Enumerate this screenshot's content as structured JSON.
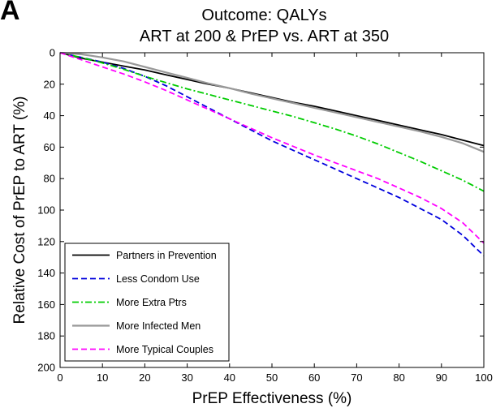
{
  "panel_label": "A",
  "chart_data": {
    "type": "line",
    "title": "Outcome: QALYs",
    "subtitle": "ART at 200 & PrEP vs. ART at 350",
    "xlabel": "PrEP Effectiveness (%)",
    "ylabel": "Relative Cost of PrEP to ART (%)",
    "xlim": [
      0,
      100
    ],
    "ylim": [
      0,
      200
    ],
    "y_reversed": true,
    "grid": false,
    "legend_position": "bottom-left",
    "x_ticks": [
      0,
      10,
      20,
      30,
      40,
      50,
      60,
      70,
      80,
      90,
      100
    ],
    "y_ticks": [
      0,
      20,
      40,
      60,
      80,
      100,
      120,
      140,
      160,
      180,
      200
    ],
    "x": [
      0,
      5,
      10,
      15,
      20,
      25,
      30,
      35,
      40,
      45,
      50,
      55,
      60,
      65,
      70,
      75,
      80,
      85,
      90,
      95,
      100
    ],
    "series": [
      {
        "name": "Partners in Prevention",
        "color": "#000000",
        "dash": "solid",
        "values": [
          0,
          3.5,
          6,
          8.5,
          11,
          14,
          17,
          20,
          22.5,
          25.5,
          28.5,
          31.5,
          34,
          37,
          40,
          43,
          46,
          49,
          52,
          55.5,
          59
        ]
      },
      {
        "name": "Less Condom Use",
        "color": "#0000dd",
        "dash": "dashed",
        "values": [
          0,
          3,
          6,
          10,
          15,
          21,
          28,
          35,
          42,
          49,
          56,
          62,
          68,
          74,
          80,
          86,
          92,
          99,
          106,
          116,
          129
        ]
      },
      {
        "name": "More Extra Ptrs",
        "color": "#00cc00",
        "dash": "dashdot",
        "values": [
          0,
          3,
          6.5,
          10.5,
          15,
          19,
          23,
          26.5,
          30,
          33.5,
          37,
          40.5,
          44.5,
          48.5,
          53,
          58,
          63.5,
          69,
          75,
          81,
          88
        ]
      },
      {
        "name": "More Infected Men",
        "color": "#999999",
        "dash": "solid",
        "values": [
          0,
          1,
          3,
          5.5,
          9,
          12.5,
          16,
          19.5,
          22.5,
          26,
          29,
          32,
          35,
          38,
          41,
          44,
          47,
          50,
          53.5,
          57.5,
          63
        ]
      },
      {
        "name": "More Typical Couples",
        "color": "#ff00ff",
        "dash": "dashed",
        "values": [
          0,
          4.5,
          9,
          13.5,
          18.5,
          24,
          30,
          36,
          42,
          48,
          54,
          59.5,
          65,
          70,
          75,
          80,
          86,
          92,
          99,
          108,
          121
        ]
      }
    ]
  }
}
